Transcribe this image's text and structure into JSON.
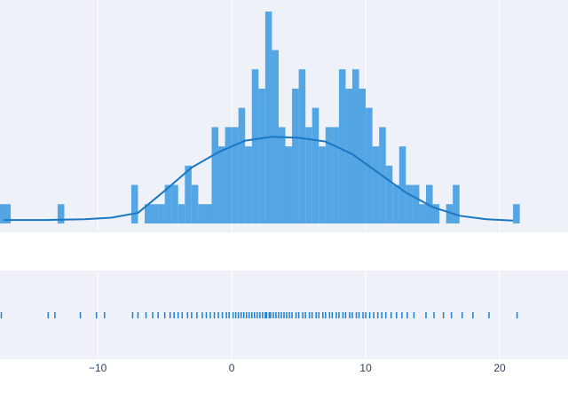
{
  "chart_data": {
    "type": "distplot",
    "xlim": [
      -17.3,
      25.1
    ],
    "xticks": [
      {
        "value": -10,
        "label": "−10"
      },
      0,
      10,
      20
    ],
    "ylim": [
      0,
      11.6
    ],
    "histogram": {
      "color": "#4aa0e3",
      "bins": [
        -17.5,
        -17,
        -16.5,
        -16,
        -15.5,
        -15,
        -14.5,
        -14,
        -13.5,
        -13,
        -12.5,
        -12,
        -11.5,
        -11,
        -10.5,
        -10,
        -9.5,
        -9,
        -8.5,
        -8,
        -7.5,
        -7,
        -6.5,
        -6,
        -5.5,
        -5,
        -4.5,
        -4,
        -3.5,
        -3,
        -2.5,
        -2,
        -1.5,
        -1,
        -0.5,
        0,
        0.5,
        1,
        1.5,
        2,
        2.5,
        3,
        3.5,
        4,
        4.5,
        5,
        5.5,
        6,
        6.5,
        7,
        7.5,
        8,
        8.5,
        9,
        9.5,
        10,
        10.5,
        11,
        11.5,
        12,
        12.5,
        13,
        13.5,
        14,
        14.5,
        15,
        15.5,
        16,
        16.5,
        17,
        17.5,
        18,
        18.5,
        19,
        19.5,
        20,
        20.5,
        21,
        21.5
      ],
      "counts": [
        1,
        1,
        0,
        0,
        0,
        0,
        0,
        0,
        0,
        1,
        0,
        0,
        0,
        0,
        0,
        0,
        0,
        0,
        0,
        0,
        2,
        0,
        1,
        1,
        1,
        2,
        2,
        1,
        3,
        2,
        1,
        1,
        5,
        4,
        5,
        5,
        6,
        4,
        8,
        7,
        11,
        9,
        5,
        4,
        7,
        8,
        5,
        6,
        4,
        5,
        5,
        8,
        7,
        8,
        7,
        6,
        4,
        5,
        3,
        2,
        4,
        2,
        2,
        1,
        2,
        1,
        0,
        1,
        2,
        0,
        0,
        0,
        0,
        0,
        0,
        0,
        0,
        1
      ]
    },
    "kde": {
      "color": "#1a78c2",
      "x": [
        -17,
        -14,
        -11,
        -9,
        -7,
        -5,
        -3,
        -1,
        1,
        3,
        5,
        7,
        9,
        11,
        13,
        15,
        17,
        19,
        21
      ],
      "values": [
        0.18,
        0.18,
        0.22,
        0.3,
        0.55,
        1.7,
        2.9,
        3.7,
        4.3,
        4.5,
        4.45,
        4.25,
        3.6,
        2.6,
        1.6,
        0.85,
        0.4,
        0.22,
        0.15
      ]
    },
    "rug": {
      "color": "#1f7fd1",
      "values": [
        -17.2,
        -13.7,
        -13.2,
        -11.3,
        -10.1,
        -9.5,
        -7.4,
        -7.0,
        -6.4,
        -5.9,
        -5.5,
        -5.0,
        -4.6,
        -4.3,
        -4.0,
        -3.7,
        -3.3,
        -3.0,
        -2.6,
        -2.2,
        -1.9,
        -1.6,
        -1.3,
        -1.0,
        -0.7,
        -0.4,
        -0.2,
        0.1,
        0.3,
        0.5,
        0.7,
        0.9,
        1.1,
        1.3,
        1.5,
        1.7,
        1.9,
        2.1,
        2.3,
        2.5,
        2.6,
        2.8,
        2.9,
        3.1,
        3.3,
        3.5,
        3.7,
        3.9,
        4.1,
        4.3,
        4.5,
        4.8,
        5.0,
        5.3,
        5.5,
        5.8,
        6.0,
        6.3,
        6.5,
        6.8,
        7.0,
        7.3,
        7.5,
        7.8,
        8.0,
        8.3,
        8.5,
        8.8,
        9.0,
        9.3,
        9.5,
        9.8,
        10.0,
        10.3,
        10.6,
        10.9,
        11.2,
        11.5,
        11.9,
        12.3,
        12.7,
        13.1,
        13.6,
        14.5,
        15.1,
        15.8,
        16.4,
        17.2,
        18.0,
        19.2,
        21.3
      ]
    }
  }
}
